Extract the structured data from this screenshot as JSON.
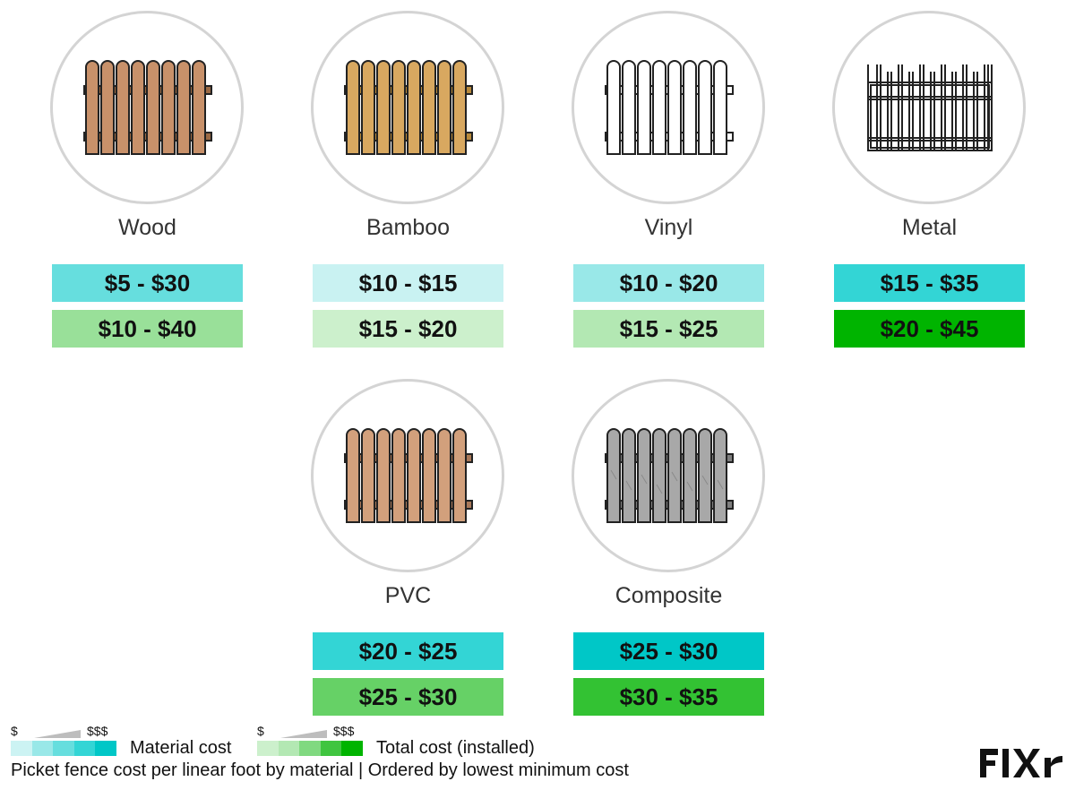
{
  "chart_data": {
    "type": "table",
    "title": "",
    "unit": "$ per linear foot",
    "rows": [
      "Material cost",
      "Total cost (installed)"
    ],
    "categories": [
      "Wood",
      "Bamboo",
      "Vinyl",
      "Metal",
      "PVC",
      "Composite"
    ],
    "series": [
      {
        "name": "Material cost",
        "ranges": [
          [
            5,
            30
          ],
          [
            10,
            15
          ],
          [
            10,
            20
          ],
          [
            15,
            35
          ],
          [
            20,
            25
          ],
          [
            25,
            30
          ]
        ],
        "labels": [
          "$5 - $30",
          "$10 - $15",
          "$10 - $20",
          "$15 - $35",
          "$20 - $25",
          "$25 - $30"
        ],
        "colors": [
          "#66dede",
          "#c9f2f2",
          "#99e8e8",
          "#33d5d5",
          "#33d5d5",
          "#00c7c7"
        ]
      },
      {
        "name": "Total cost (installed)",
        "ranges": [
          [
            10,
            40
          ],
          [
            15,
            20
          ],
          [
            15,
            25
          ],
          [
            20,
            45
          ],
          [
            25,
            30
          ],
          [
            30,
            35
          ]
        ],
        "labels": [
          "$10 - $40",
          "$15 - $20",
          "$15 - $25",
          "$20 - $45",
          "$25 - $30",
          "$30 - $35"
        ],
        "colors": [
          "#99e099",
          "#ccf0cc",
          "#b3e8b3",
          "#00b400",
          "#66d166",
          "#33c233"
        ]
      }
    ],
    "fence_icons": [
      "wood-fence-icon",
      "bamboo-fence-icon",
      "vinyl-fence-icon",
      "metal-fence-icon",
      "pvc-fence-icon",
      "composite-fence-icon"
    ],
    "legend": {
      "low": "$",
      "high": "$$$",
      "material_label": "Material cost",
      "total_label": "Total cost (installed)",
      "material_scale": [
        "#ccf3f3",
        "#99e8e8",
        "#66dede",
        "#33d5d5",
        "#00c7c7"
      ],
      "total_scale": [
        "#ccf0cc",
        "#b3e8b3",
        "#80d980",
        "#40c540",
        "#00b400"
      ]
    },
    "footnote": "Picket fence cost per linear foot by material | Ordered by lowest minimum cost",
    "brand": "FIXR",
    "brand_color": "#111111"
  }
}
